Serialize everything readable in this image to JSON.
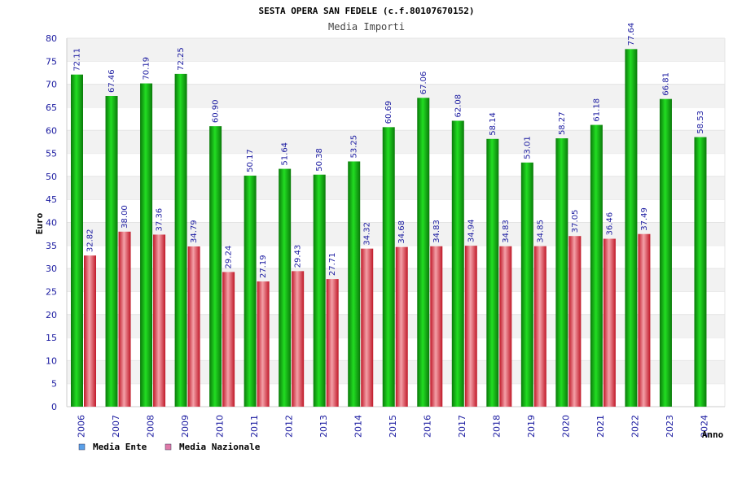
{
  "chart_data": {
    "type": "bar",
    "title": "SESTA OPERA SAN FEDELE (c.f.80107670152)",
    "subtitle": "Media Importi",
    "xlabel": "Anno",
    "ylabel": "Euro",
    "ylim": [
      0,
      80
    ],
    "yticks": [
      0,
      5,
      10,
      15,
      20,
      25,
      30,
      35,
      40,
      45,
      50,
      55,
      60,
      65,
      70,
      75,
      80
    ],
    "categories": [
      "2006",
      "2007",
      "2008",
      "2009",
      "2010",
      "2011",
      "2012",
      "2013",
      "2014",
      "2015",
      "2016",
      "2017",
      "2018",
      "2019",
      "2020",
      "2021",
      "2022",
      "2023",
      "2024"
    ],
    "series": [
      {
        "name": "Media Ente",
        "color": "#1aaa1a",
        "values": [
          72.11,
          67.46,
          70.19,
          72.25,
          60.9,
          50.17,
          51.64,
          50.38,
          53.25,
          60.69,
          67.06,
          62.08,
          58.14,
          53.01,
          58.27,
          61.18,
          77.64,
          66.81,
          58.53
        ],
        "labels": [
          "72.11",
          "67.46",
          "70.19",
          "72.25",
          "60.90",
          "50.17",
          "51.64",
          "50.38",
          "53.25",
          "60.69",
          "67.06",
          "62.08",
          "58.14",
          "53.01",
          "58.27",
          "61.18",
          "77.64",
          "66.81",
          "58.53"
        ]
      },
      {
        "name": "Media Nazionale",
        "color": "#e0303a",
        "values": [
          32.82,
          38.0,
          37.36,
          34.79,
          29.24,
          27.19,
          29.43,
          27.71,
          34.32,
          34.68,
          34.83,
          34.94,
          34.83,
          34.85,
          37.05,
          36.46,
          37.49,
          null,
          null
        ],
        "labels": [
          "32.82",
          "38.00",
          "37.36",
          "34.79",
          "29.24",
          "27.19",
          "29.43",
          "27.71",
          "34.32",
          "34.68",
          "34.83",
          "34.94",
          "34.83",
          "34.85",
          "37.05",
          "36.46",
          "37.49",
          "",
          ""
        ]
      }
    ],
    "legend": [
      {
        "name": "Media Ente",
        "swatch": "#5aa0e8"
      },
      {
        "name": "Media Nazionale",
        "swatch": "#e07aa8"
      }
    ],
    "grid": true,
    "legend_position": "bottom-left"
  }
}
